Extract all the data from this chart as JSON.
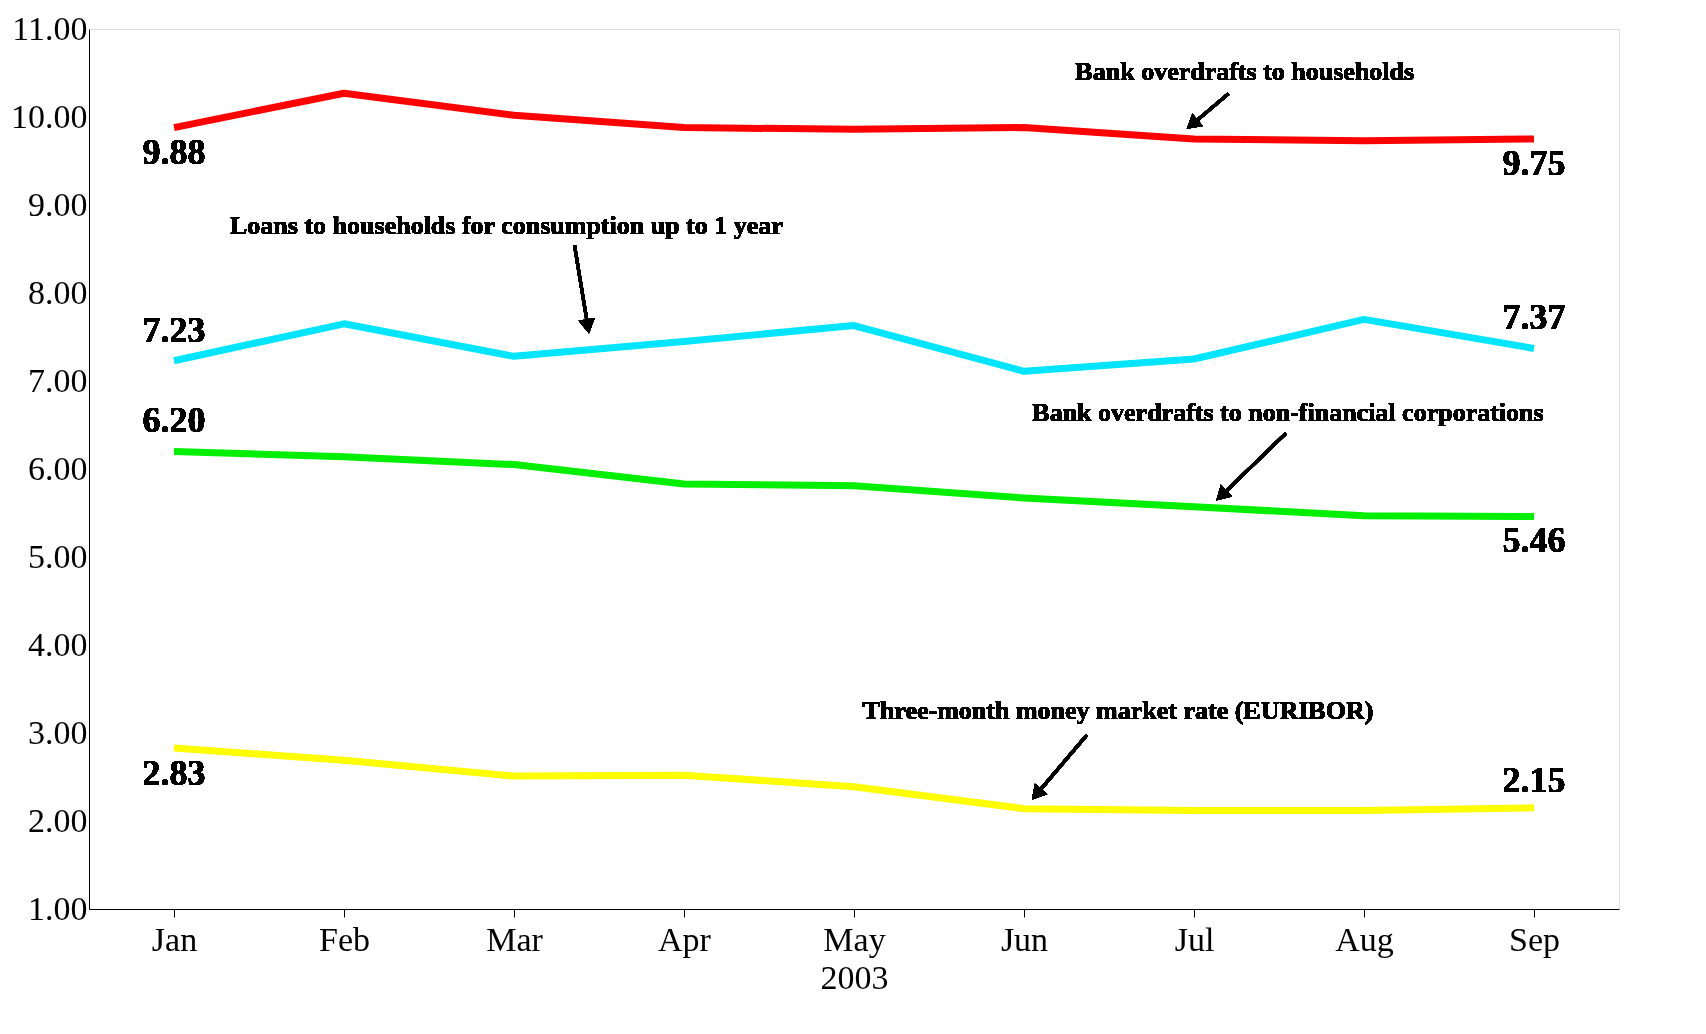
{
  "chart_data": {
    "type": "line",
    "categories": [
      "Jan",
      "Feb",
      "Mar",
      "Apr",
      "May",
      "Jun",
      "Jul",
      "Aug",
      "Sep"
    ],
    "xlabel": "2003",
    "series": [
      {
        "name": "Bank overdrafts to households",
        "color": "#ff0000",
        "values": [
          9.88,
          10.27,
          10.02,
          9.88,
          9.86,
          9.88,
          9.75,
          9.73,
          9.75
        ],
        "value_labels": [
          "9.88",
          null,
          null,
          null,
          null,
          null,
          null,
          null,
          "9.75"
        ]
      },
      {
        "name": "Loans to households for consumption up to 1 year",
        "color": "#00e5ff",
        "values": [
          7.23,
          7.65,
          7.28,
          7.45,
          7.63,
          7.11,
          7.25,
          7.7,
          7.37
        ],
        "value_labels": [
          "7.23",
          null,
          null,
          null,
          null,
          null,
          null,
          null,
          "7.37"
        ]
      },
      {
        "name": "Bank overdrafts to non-financial corporations",
        "color": "#00ee00",
        "values": [
          6.2,
          6.14,
          6.05,
          5.83,
          5.81,
          5.67,
          5.57,
          5.47,
          5.46
        ],
        "value_labels": [
          "6.20",
          null,
          null,
          null,
          null,
          null,
          null,
          null,
          "5.46"
        ]
      },
      {
        "name": "Three-month money market rate (EURIBOR)",
        "color": "#ffff00",
        "values": [
          2.83,
          2.69,
          2.51,
          2.52,
          2.39,
          2.14,
          2.12,
          2.12,
          2.15
        ],
        "value_labels": [
          "2.83",
          null,
          null,
          null,
          null,
          null,
          null,
          null,
          "2.15"
        ]
      }
    ],
    "ylim": [
      1,
      11
    ],
    "yticks": [
      {
        "value": 1,
        "label": "1.00"
      },
      {
        "value": 2,
        "label": "2.00"
      },
      {
        "value": 3,
        "label": "3.00"
      },
      {
        "value": 4,
        "label": "4.00"
      },
      {
        "value": 5,
        "label": "5.00"
      },
      {
        "value": 6,
        "label": "6.00"
      },
      {
        "value": 7,
        "label": "7.00"
      },
      {
        "value": 8,
        "label": "8.00"
      },
      {
        "value": 9,
        "label": "9.00"
      },
      {
        "value": 10,
        "label": "10.00"
      },
      {
        "value": 11,
        "label": "11.00"
      }
    ],
    "grid": false,
    "legend": false,
    "marker": "none",
    "line_style": "solid"
  }
}
